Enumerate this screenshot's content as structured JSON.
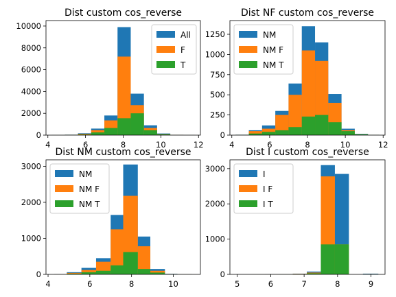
{
  "colors": {
    "blue": "#1f77b4",
    "orange": "#ff7f0e",
    "green": "#2ca02c"
  },
  "chart_data": [
    {
      "type": "histogram",
      "title": "Dist custom cos_reverse",
      "xlim": [
        3.9,
        12.1
      ],
      "ylim": [
        0,
        10500
      ],
      "xticks": [
        4,
        6,
        8,
        10,
        12
      ],
      "yticks": [
        0,
        2000,
        4000,
        6000,
        8000,
        10000
      ],
      "legend": "top-right",
      "bin_edges": [
        4.2,
        4.9,
        5.6,
        6.3,
        7.0,
        7.7,
        8.4,
        9.1,
        9.8,
        10.5,
        11.2,
        11.8
      ],
      "series": [
        {
          "name": "All",
          "color": "#1f77b4",
          "values": [
            5,
            40,
            170,
            600,
            1800,
            9900,
            3800,
            900,
            150,
            20,
            5
          ]
        },
        {
          "name": "F",
          "color": "#ff7f0e",
          "values": [
            3,
            30,
            120,
            450,
            1350,
            7200,
            2750,
            650,
            100,
            15,
            3
          ]
        },
        {
          "name": "T",
          "color": "#2ca02c",
          "values": [
            2,
            15,
            60,
            250,
            650,
            1550,
            2000,
            450,
            80,
            10,
            2
          ]
        }
      ]
    },
    {
      "type": "histogram",
      "title": "Dist NF custom cos_reverse",
      "xlim": [
        3.9,
        12.1
      ],
      "ylim": [
        0,
        1420
      ],
      "xticks": [
        4,
        6,
        8,
        10,
        12
      ],
      "yticks": [
        0,
        250,
        500,
        750,
        1000,
        1250
      ],
      "legend": "top-left",
      "bin_edges": [
        4.2,
        4.9,
        5.6,
        6.3,
        7.0,
        7.7,
        8.4,
        9.1,
        9.8,
        10.5,
        11.2,
        11.8
      ],
      "series": [
        {
          "name": "NM",
          "color": "#1f77b4",
          "values": [
            5,
            60,
            120,
            300,
            640,
            1350,
            1150,
            510,
            80,
            15,
            3
          ]
        },
        {
          "name": "NM F",
          "color": "#ff7f0e",
          "values": [
            3,
            50,
            80,
            250,
            500,
            1050,
            920,
            400,
            60,
            10,
            2
          ]
        },
        {
          "name": "NM T",
          "color": "#2ca02c",
          "values": [
            2,
            20,
            40,
            60,
            100,
            230,
            250,
            160,
            50,
            10,
            2
          ]
        }
      ]
    },
    {
      "type": "histogram",
      "title": "Dist NM custom cos_reverse",
      "xlim": [
        3.9,
        11.3
      ],
      "ylim": [
        0,
        3180
      ],
      "xticks": [
        4,
        6,
        8,
        10
      ],
      "yticks": [
        0,
        1000,
        2000,
        3000
      ],
      "legend": "top-left",
      "bin_edges": [
        4.3,
        4.9,
        5.6,
        6.3,
        7.0,
        7.6,
        8.3,
        8.9,
        9.6,
        10.2,
        10.9
      ],
      "series": [
        {
          "name": "NM",
          "color": "#1f77b4",
          "values": [
            5,
            60,
            180,
            450,
            1650,
            3050,
            1050,
            150,
            15,
            3
          ]
        },
        {
          "name": "NM F",
          "color": "#ff7f0e",
          "values": [
            3,
            40,
            120,
            350,
            1250,
            2180,
            780,
            100,
            10,
            2
          ]
        },
        {
          "name": "NM T",
          "color": "#2ca02c",
          "values": [
            2,
            20,
            60,
            100,
            250,
            620,
            150,
            50,
            5,
            1
          ]
        }
      ]
    },
    {
      "type": "histogram",
      "title": "Dist I custom cos_reverse",
      "xlim": [
        4.78,
        9.42
      ],
      "ylim": [
        0,
        3250
      ],
      "xticks": [
        5,
        6,
        7,
        8,
        9
      ],
      "yticks": [
        0,
        1000,
        2000,
        3000
      ],
      "legend": "top-left",
      "bin_edges": [
        4.98,
        5.4,
        5.82,
        6.24,
        6.66,
        7.08,
        7.5,
        7.92,
        8.34,
        8.76,
        9.22
      ],
      "series": [
        {
          "name": "I",
          "color": "#1f77b4",
          "values": [
            2,
            3,
            5,
            8,
            20,
            80,
            3100,
            2850,
            0,
            20
          ]
        },
        {
          "name": "I F",
          "color": "#ff7f0e",
          "values": [
            1,
            2,
            3,
            5,
            15,
            50,
            2780,
            850,
            0,
            10
          ]
        },
        {
          "name": "I T",
          "color": "#2ca02c",
          "values": [
            1,
            1,
            2,
            3,
            8,
            30,
            850,
            850,
            0,
            5
          ]
        }
      ]
    }
  ]
}
